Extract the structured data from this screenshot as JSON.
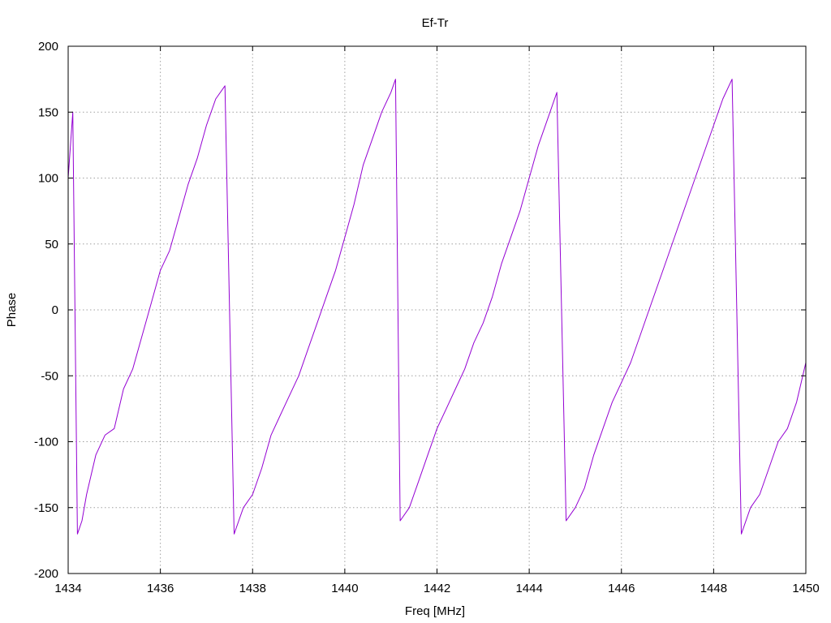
{
  "chart_data": {
    "type": "line",
    "title": "Ef-Tr",
    "xlabel": "Freq [MHz]",
    "ylabel": "Phase",
    "xlim": [
      1434,
      1450
    ],
    "ylim": [
      -200,
      200
    ],
    "x_ticks": [
      1434,
      1436,
      1438,
      1440,
      1442,
      1444,
      1446,
      1448,
      1450
    ],
    "y_ticks": [
      -200,
      -150,
      -100,
      -50,
      0,
      50,
      100,
      150,
      200
    ],
    "grid": true,
    "legend": "none",
    "series": [
      {
        "color": "#9400d3",
        "x": [
          1434.0,
          1434.1,
          1434.2,
          1434.3,
          1434.4,
          1434.6,
          1434.8,
          1435.0,
          1435.2,
          1435.4,
          1435.6,
          1435.8,
          1436.0,
          1436.2,
          1436.4,
          1436.6,
          1436.8,
          1437.0,
          1437.2,
          1437.4,
          1437.6,
          1437.7,
          1437.8,
          1438.0,
          1438.2,
          1438.4,
          1438.6,
          1438.8,
          1439.0,
          1439.2,
          1439.4,
          1439.6,
          1439.8,
          1440.0,
          1440.2,
          1440.4,
          1440.6,
          1440.8,
          1441.0,
          1441.1,
          1441.2,
          1441.4,
          1441.6,
          1441.8,
          1442.0,
          1442.2,
          1442.4,
          1442.6,
          1442.8,
          1443.0,
          1443.2,
          1443.4,
          1443.6,
          1443.8,
          1444.0,
          1444.2,
          1444.4,
          1444.6,
          1444.8,
          1445.0,
          1445.2,
          1445.4,
          1445.6,
          1445.8,
          1446.0,
          1446.2,
          1446.4,
          1446.6,
          1446.8,
          1447.0,
          1447.2,
          1447.4,
          1447.6,
          1447.8,
          1448.0,
          1448.2,
          1448.4,
          1448.6,
          1448.8,
          1449.0,
          1449.2,
          1449.4,
          1449.6,
          1449.8,
          1450.0
        ],
        "y": [
          100,
          150,
          -170,
          -160,
          -140,
          -110,
          -95,
          -90,
          -60,
          -45,
          -20,
          5,
          30,
          45,
          70,
          95,
          115,
          140,
          160,
          170,
          -170,
          -160,
          -150,
          -140,
          -120,
          -95,
          -80,
          -65,
          -50,
          -30,
          -10,
          10,
          30,
          55,
          80,
          110,
          130,
          150,
          165,
          175,
          -160,
          -150,
          -130,
          -110,
          -90,
          -75,
          -60,
          -45,
          -25,
          -10,
          10,
          35,
          55,
          75,
          100,
          125,
          145,
          165,
          -160,
          -150,
          -135,
          -110,
          -90,
          -70,
          -55,
          -40,
          -20,
          0,
          20,
          40,
          60,
          80,
          100,
          120,
          140,
          160,
          175,
          -170,
          -150,
          -140,
          -120,
          -100,
          -90,
          -70,
          -40
        ]
      }
    ]
  }
}
